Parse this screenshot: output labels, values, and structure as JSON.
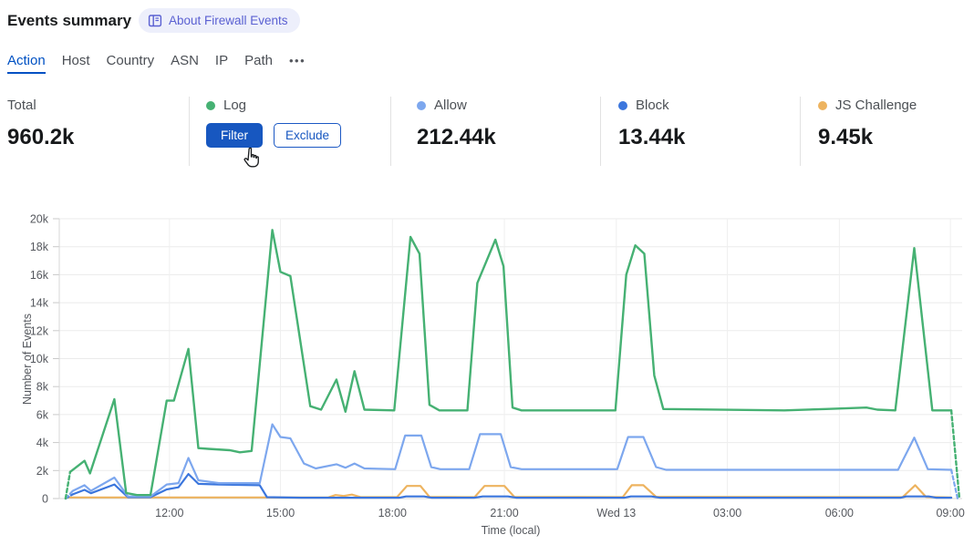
{
  "header": {
    "title": "Events summary",
    "badge_label": "About Firewall Events",
    "badge_color": "#5a60d2"
  },
  "tabs": {
    "items": [
      {
        "label": "Action",
        "active": true
      },
      {
        "label": "Host",
        "active": false
      },
      {
        "label": "Country",
        "active": false
      },
      {
        "label": "ASN",
        "active": false
      },
      {
        "label": "IP",
        "active": false
      },
      {
        "label": "Path",
        "active": false
      }
    ],
    "more_label": "•••",
    "active_color": "#0051c3"
  },
  "stats": {
    "columns": [
      {
        "label": "Total",
        "value": "960.2k",
        "dot_color": null
      },
      {
        "label": "Log",
        "value": null,
        "dot_color": "#46b173",
        "buttons": [
          {
            "label": "Filter"
          },
          {
            "label": "Exclude"
          }
        ]
      },
      {
        "label": "Allow",
        "value": "212.44k",
        "dot_color": "#7da7ee"
      },
      {
        "label": "Block",
        "value": "13.44k",
        "dot_color": "#3b76dd"
      },
      {
        "label": "JS Challenge",
        "value": "9.45k",
        "dot_color": "#edb35f"
      }
    ],
    "button_primary_color": "#1757c0"
  },
  "chart_data": {
    "type": "line",
    "title": "",
    "xlabel": "Time (local)",
    "ylabel": "Number of Events",
    "ylim": [
      0,
      20000
    ],
    "grid": true,
    "legend_position": "stats-row-above",
    "yticks": [
      {
        "label": "0",
        "v": 0
      },
      {
        "label": "2k",
        "v": 2000
      },
      {
        "label": "4k",
        "v": 4000
      },
      {
        "label": "6k",
        "v": 6000
      },
      {
        "label": "8k",
        "v": 8000
      },
      {
        "label": "10k",
        "v": 10000
      },
      {
        "label": "12k",
        "v": 12000
      },
      {
        "label": "14k",
        "v": 14000
      },
      {
        "label": "16k",
        "v": 16000
      },
      {
        "label": "18k",
        "v": 18000
      },
      {
        "label": "20k",
        "v": 20000
      }
    ],
    "xticks": [
      {
        "label": "12:00",
        "f": 0.122
      },
      {
        "label": "15:00",
        "f": 0.245
      },
      {
        "label": "18:00",
        "f": 0.369
      },
      {
        "label": "21:00",
        "f": 0.493
      },
      {
        "label": "Wed 13",
        "f": 0.617
      },
      {
        "label": "03:00",
        "f": 0.74
      },
      {
        "label": "06:00",
        "f": 0.864
      },
      {
        "label": "09:00",
        "f": 0.987
      }
    ],
    "series": [
      {
        "name": "Log",
        "color": "#46b173",
        "width": 2.4,
        "dash_head": [
          [
            0.007,
            0
          ],
          [
            0.012,
            1900
          ]
        ],
        "points": [
          [
            0.012,
            1900
          ],
          [
            0.028,
            2700
          ],
          [
            0.034,
            1800
          ],
          [
            0.061,
            7100
          ],
          [
            0.074,
            400
          ],
          [
            0.086,
            250
          ],
          [
            0.101,
            250
          ],
          [
            0.119,
            7000
          ],
          [
            0.127,
            7000
          ],
          [
            0.143,
            10700
          ],
          [
            0.154,
            3600
          ],
          [
            0.165,
            3550
          ],
          [
            0.189,
            3450
          ],
          [
            0.2,
            3300
          ],
          [
            0.213,
            3400
          ],
          [
            0.236,
            19200
          ],
          [
            0.245,
            16200
          ],
          [
            0.256,
            15900
          ],
          [
            0.278,
            6600
          ],
          [
            0.29,
            6350
          ],
          [
            0.307,
            8500
          ],
          [
            0.317,
            6200
          ],
          [
            0.327,
            9100
          ],
          [
            0.338,
            6350
          ],
          [
            0.371,
            6300
          ],
          [
            0.389,
            18700
          ],
          [
            0.399,
            17500
          ],
          [
            0.41,
            6700
          ],
          [
            0.421,
            6300
          ],
          [
            0.452,
            6300
          ],
          [
            0.463,
            15400
          ],
          [
            0.483,
            18500
          ],
          [
            0.492,
            16600
          ],
          [
            0.502,
            6500
          ],
          [
            0.512,
            6300
          ],
          [
            0.616,
            6300
          ],
          [
            0.628,
            16000
          ],
          [
            0.638,
            18100
          ],
          [
            0.648,
            17500
          ],
          [
            0.659,
            8800
          ],
          [
            0.669,
            6400
          ],
          [
            0.803,
            6300
          ],
          [
            0.849,
            6400
          ],
          [
            0.894,
            6500
          ],
          [
            0.906,
            6350
          ],
          [
            0.926,
            6300
          ],
          [
            0.947,
            17900
          ],
          [
            0.967,
            6300
          ],
          [
            0.988,
            6300
          ]
        ],
        "dash_tail": [
          [
            0.988,
            6300
          ],
          [
            0.997,
            0
          ]
        ]
      },
      {
        "name": "Allow",
        "color": "#7da7ee",
        "width": 2.2,
        "dash_head": [
          [
            0.007,
            0
          ],
          [
            0.015,
            550
          ]
        ],
        "points": [
          [
            0.015,
            550
          ],
          [
            0.028,
            950
          ],
          [
            0.035,
            550
          ],
          [
            0.061,
            1500
          ],
          [
            0.076,
            150
          ],
          [
            0.101,
            150
          ],
          [
            0.119,
            1000
          ],
          [
            0.132,
            1100
          ],
          [
            0.143,
            2900
          ],
          [
            0.154,
            1300
          ],
          [
            0.177,
            1100
          ],
          [
            0.222,
            1100
          ],
          [
            0.236,
            5300
          ],
          [
            0.245,
            4400
          ],
          [
            0.256,
            4300
          ],
          [
            0.271,
            2500
          ],
          [
            0.284,
            2150
          ],
          [
            0.307,
            2450
          ],
          [
            0.317,
            2200
          ],
          [
            0.327,
            2500
          ],
          [
            0.338,
            2150
          ],
          [
            0.372,
            2100
          ],
          [
            0.383,
            4500
          ],
          [
            0.401,
            4500
          ],
          [
            0.412,
            2250
          ],
          [
            0.422,
            2100
          ],
          [
            0.454,
            2100
          ],
          [
            0.466,
            4600
          ],
          [
            0.489,
            4600
          ],
          [
            0.5,
            2250
          ],
          [
            0.512,
            2100
          ],
          [
            0.618,
            2100
          ],
          [
            0.63,
            4400
          ],
          [
            0.647,
            4400
          ],
          [
            0.661,
            2250
          ],
          [
            0.672,
            2050
          ],
          [
            0.929,
            2050
          ],
          [
            0.947,
            4350
          ],
          [
            0.962,
            2100
          ],
          [
            0.988,
            2050
          ]
        ],
        "dash_tail": [
          [
            0.988,
            2050
          ],
          [
            0.995,
            0
          ]
        ]
      },
      {
        "name": "Block",
        "color": "#3b76dd",
        "width": 2.2,
        "dash_head": [
          [
            0.007,
            0
          ],
          [
            0.015,
            300
          ]
        ],
        "points": [
          [
            0.015,
            300
          ],
          [
            0.028,
            620
          ],
          [
            0.035,
            380
          ],
          [
            0.061,
            1000
          ],
          [
            0.076,
            100
          ],
          [
            0.101,
            100
          ],
          [
            0.119,
            650
          ],
          [
            0.132,
            800
          ],
          [
            0.143,
            1750
          ],
          [
            0.154,
            1050
          ],
          [
            0.177,
            1000
          ],
          [
            0.222,
            950
          ],
          [
            0.23,
            100
          ],
          [
            0.268,
            60
          ],
          [
            0.377,
            60
          ],
          [
            0.384,
            150
          ],
          [
            0.404,
            150
          ],
          [
            0.412,
            60
          ],
          [
            0.46,
            60
          ],
          [
            0.469,
            150
          ],
          [
            0.497,
            150
          ],
          [
            0.506,
            60
          ],
          [
            0.626,
            60
          ],
          [
            0.633,
            150
          ],
          [
            0.656,
            150
          ],
          [
            0.665,
            60
          ],
          [
            0.932,
            60
          ],
          [
            0.938,
            150
          ],
          [
            0.963,
            150
          ],
          [
            0.971,
            60
          ],
          [
            0.988,
            60
          ]
        ],
        "dash_tail": []
      },
      {
        "name": "JS Challenge",
        "color": "#edb35f",
        "width": 2.2,
        "dash_head": [],
        "points": [
          [
            0.007,
            80
          ],
          [
            0.298,
            80
          ],
          [
            0.306,
            250
          ],
          [
            0.315,
            180
          ],
          [
            0.324,
            280
          ],
          [
            0.334,
            100
          ],
          [
            0.374,
            100
          ],
          [
            0.385,
            900
          ],
          [
            0.4,
            900
          ],
          [
            0.41,
            120
          ],
          [
            0.46,
            100
          ],
          [
            0.471,
            900
          ],
          [
            0.493,
            900
          ],
          [
            0.504,
            120
          ],
          [
            0.624,
            100
          ],
          [
            0.634,
            950
          ],
          [
            0.647,
            950
          ],
          [
            0.661,
            120
          ],
          [
            0.934,
            100
          ],
          [
            0.948,
            950
          ],
          [
            0.96,
            120
          ],
          [
            0.988,
            80
          ]
        ],
        "dash_tail": []
      }
    ]
  }
}
